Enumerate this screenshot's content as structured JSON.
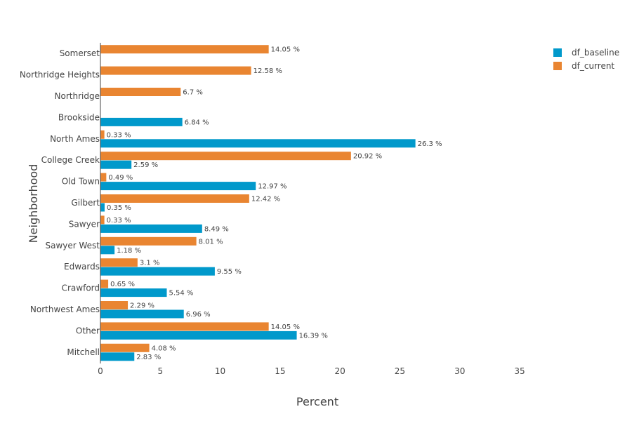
{
  "chart_data": {
    "type": "bar",
    "orientation": "horizontal",
    "xlabel": "Percent",
    "ylabel": "Neighborhood",
    "xlim": [
      0,
      35
    ],
    "xticks": [
      0,
      5,
      10,
      15,
      20,
      25,
      30,
      35
    ],
    "value_suffix": " %",
    "legend_position": "top-right",
    "grid": false,
    "categories": [
      "Somerset",
      "Northridge Heights",
      "Northridge",
      "Brookside",
      "North Ames",
      "College Creek",
      "Old Town",
      "Gilbert",
      "Sawyer",
      "Sawyer West",
      "Edwards",
      "Crawford",
      "Northwest Ames",
      "Other",
      "Mitchell"
    ],
    "series": [
      {
        "name": "df_baseline",
        "color": "#0199cb",
        "values": [
          null,
          null,
          null,
          6.84,
          26.3,
          2.59,
          12.97,
          0.35,
          8.49,
          1.18,
          9.55,
          5.54,
          6.96,
          16.39,
          2.83
        ],
        "labels": [
          "",
          "",
          "",
          "6.84 %",
          "26.3 %",
          "2.59 %",
          "12.97 %",
          "0.35 %",
          "8.49 %",
          "1.18 %",
          "9.55 %",
          "5.54 %",
          "6.96 %",
          "16.39 %",
          "2.83 %"
        ]
      },
      {
        "name": "df_current",
        "color": "#e98531",
        "values": [
          14.05,
          12.58,
          6.7,
          null,
          0.33,
          20.92,
          0.49,
          12.42,
          0.33,
          8.01,
          3.1,
          0.65,
          2.29,
          14.05,
          4.08
        ],
        "labels": [
          "14.05 %",
          "12.58 %",
          "6.7 %",
          "",
          "0.33 %",
          "20.92 %",
          "0.49 %",
          "12.42 %",
          "0.33 %",
          "8.01 %",
          "3.1 %",
          "0.65 %",
          "2.29 %",
          "14.05 %",
          "4.08 %"
        ]
      }
    ]
  }
}
